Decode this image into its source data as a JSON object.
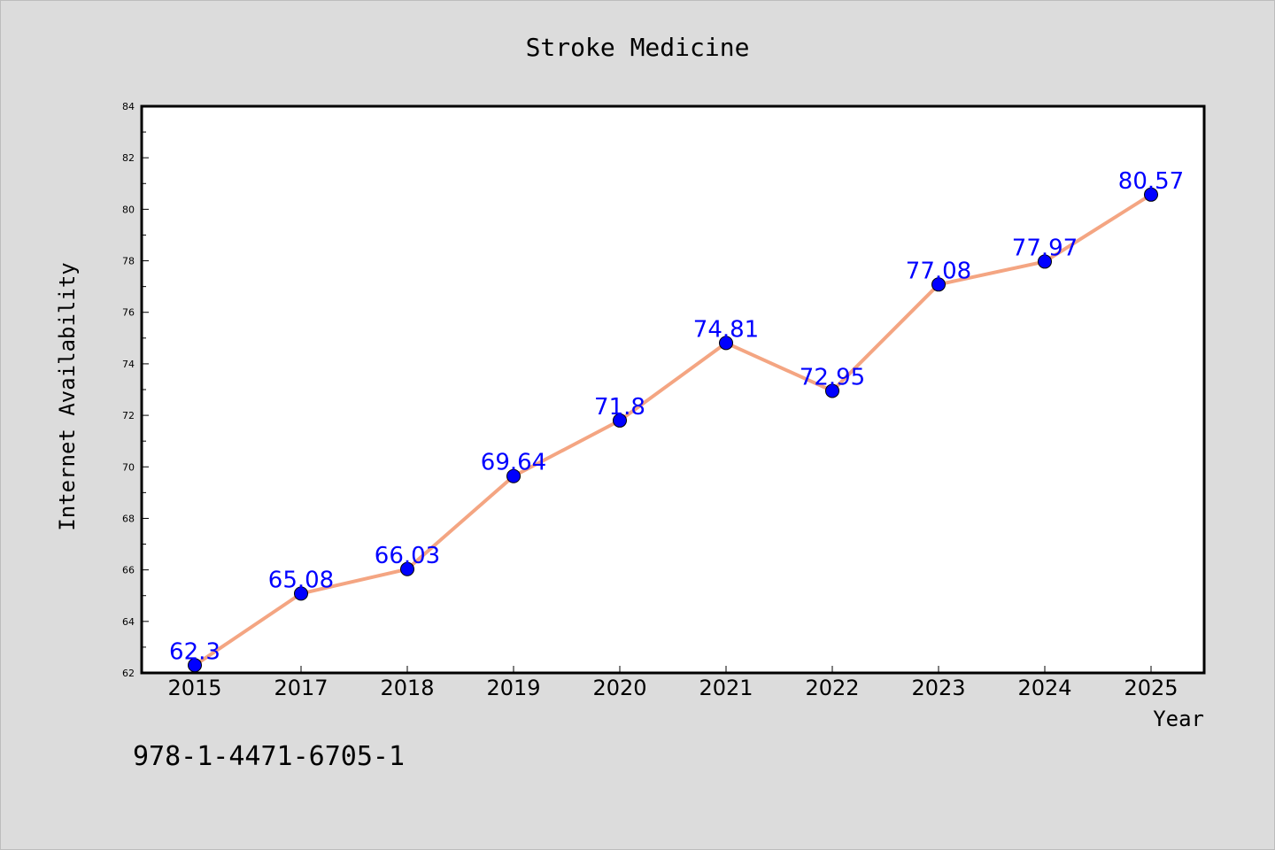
{
  "chart_data": {
    "type": "line",
    "title": "Stroke Medicine",
    "xlabel": "Year",
    "ylabel": "Internet Availability",
    "categories": [
      "2015",
      "2017",
      "2018",
      "2019",
      "2020",
      "2021",
      "2022",
      "2023",
      "2024",
      "2025"
    ],
    "values": [
      62.3,
      65.08,
      66.03,
      69.64,
      71.8,
      74.81,
      72.95,
      77.08,
      77.97,
      80.57
    ],
    "data_labels": [
      "62.3",
      "65.08",
      "66.03",
      "69.64",
      "71.8",
      "74.81",
      "72.95",
      "77.08",
      "77.97",
      "80.57"
    ],
    "ylim": [
      62,
      84
    ],
    "yticks": [
      62,
      64,
      66,
      68,
      70,
      72,
      74,
      76,
      78,
      80,
      82,
      84
    ],
    "grid": false,
    "colors": {
      "line": "#f4a582",
      "marker": "#0000ff",
      "label": "#0000ff",
      "background": "#dcdcdc",
      "plot": "#ffffff"
    }
  },
  "footer_text": "978-1-4471-6705-1"
}
